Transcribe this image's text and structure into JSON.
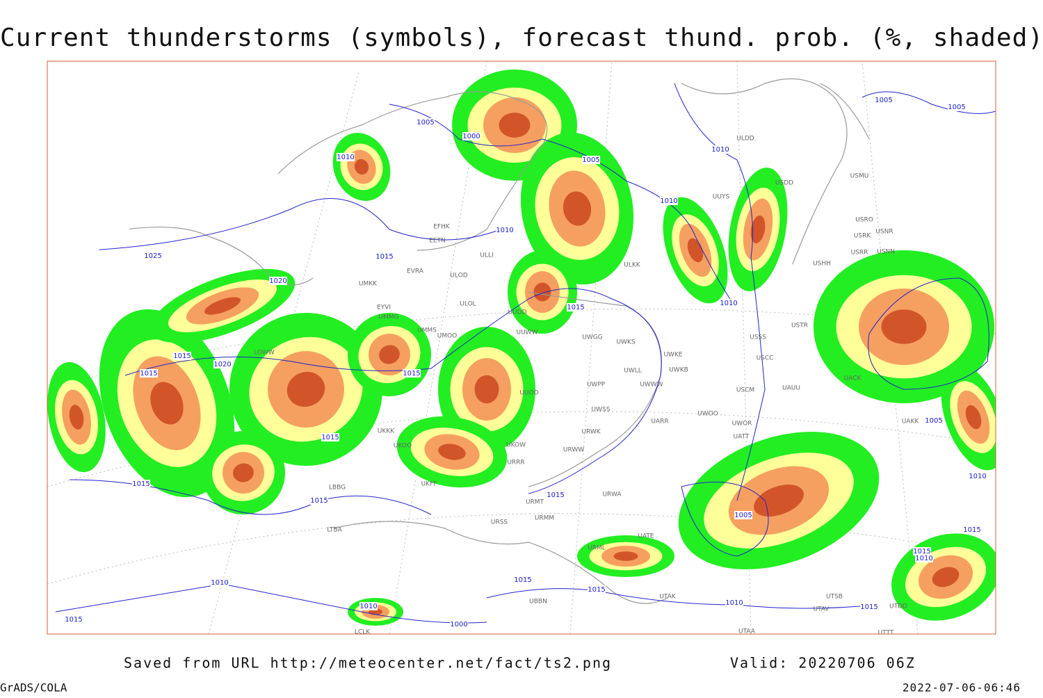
{
  "title": "Current thunderstorms (symbols), forecast thund. prob. (%, shaded)",
  "map": {
    "isobar_labels": [
      "1005",
      "1000",
      "1010",
      "1005",
      "1010",
      "1010",
      "1010",
      "1015",
      "1025",
      "1020",
      "1015",
      "1010",
      "1015",
      "1020",
      "1015",
      "1015",
      "1015",
      "1015",
      "1015",
      "1015",
      "1005",
      "1005",
      "1010",
      "1015",
      "1015",
      "1010",
      "1015",
      "1015",
      "1010",
      "1010",
      "1000",
      "1015",
      "1010",
      "1015",
      "1005",
      "1005"
    ],
    "station_labels": [
      "ULDD",
      "UUYS",
      "USDD",
      "USMU",
      "USRO",
      "USRK",
      "USNR",
      "USRR",
      "USNN",
      "USHH",
      "USTR",
      "USSS",
      "USCC",
      "USCM",
      "UAUU",
      "UWOO",
      "UWOR",
      "UATT",
      "UACK",
      "UAKK",
      "UWKE",
      "UWKB",
      "UWWW",
      "UWLL",
      "UWPP",
      "UWGG",
      "UWKS",
      "UWSS",
      "UARR",
      "URWK",
      "URWW",
      "UKOW",
      "URRR",
      "URWA",
      "URMT",
      "URMM",
      "URSS",
      "URML",
      "UATE",
      "UTAK",
      "UTAA",
      "UTSB",
      "UTAV",
      "UTTT",
      "UTDD",
      "UBBN",
      "EFHK",
      "EETN",
      "EVRA",
      "ULOD",
      "ULOL",
      "UMKK",
      "EYVI",
      "UMMG",
      "UMMS",
      "UMOO",
      "ULLI",
      "ULKK",
      "LOWW",
      "LBBG",
      "LTBA",
      "LCLK",
      "UKOO",
      "UKFF",
      "UKKK",
      "UUOO",
      "UUWW",
      "UUDD"
    ]
  },
  "footer": {
    "source": "Saved from URL http://meteocenter.net/fact/ts2.png",
    "valid": "Valid: 20220706 06Z",
    "software": "GrADS/COLA",
    "timestamp": "2022-07-06-06:46"
  }
}
